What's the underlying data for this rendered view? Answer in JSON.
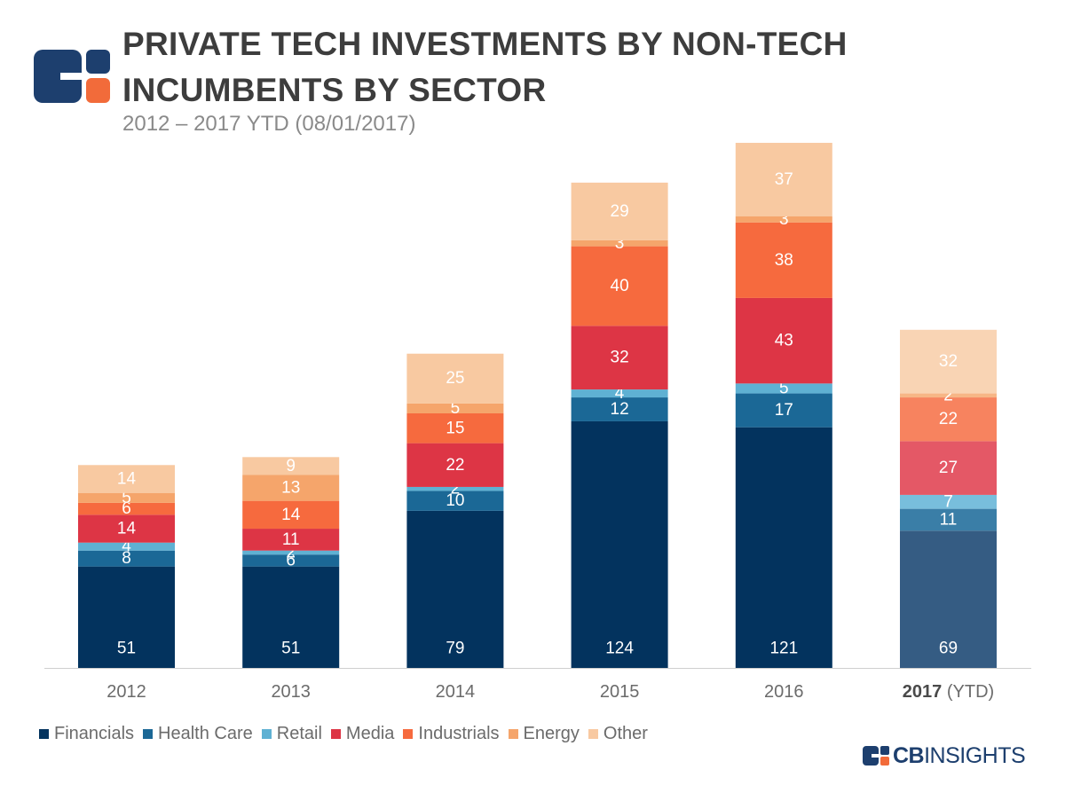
{
  "header": {
    "title_line1": "PRIVATE TECH INVESTMENTS BY NON-TECH",
    "title_line2": "INCUMBENTS BY SECTOR",
    "subtitle": "2012 – 2017 YTD (08/01/2017)"
  },
  "brand": {
    "prefix": "CB",
    "suffix": "INSIGHTS"
  },
  "colors": {
    "logo_navy": "#1d3f6e",
    "logo_orange": "#f26b3a",
    "axis": "#cfcfcf",
    "label_text": "#ffffff"
  },
  "chart_data": {
    "type": "bar",
    "stacked": true,
    "categories": [
      "2012",
      "2013",
      "2014",
      "2015",
      "2016",
      "2017 (YTD)"
    ],
    "category_labels": [
      {
        "bold": "",
        "rest": "2012"
      },
      {
        "bold": "",
        "rest": "2013"
      },
      {
        "bold": "",
        "rest": "2014"
      },
      {
        "bold": "",
        "rest": "2015"
      },
      {
        "bold": "",
        "rest": "2016"
      },
      {
        "bold": "2017",
        "rest": " (YTD)"
      }
    ],
    "series": [
      {
        "name": "Financials",
        "color": "#03335e",
        "color_ytd": "#355c83",
        "values": [
          51,
          51,
          79,
          124,
          121,
          69
        ]
      },
      {
        "name": "Health Care",
        "color": "#1b6896",
        "color_ytd": "#3a7ea7",
        "values": [
          8,
          6,
          10,
          12,
          17,
          11
        ]
      },
      {
        "name": "Retail",
        "color": "#5fb1d3",
        "color_ytd": "#78bedc",
        "values": [
          4,
          2,
          2,
          4,
          5,
          7
        ]
      },
      {
        "name": "Media",
        "color": "#dd3545",
        "color_ytd": "#e45866",
        "values": [
          14,
          11,
          22,
          32,
          43,
          27
        ]
      },
      {
        "name": "Industrials",
        "color": "#f66a3e",
        "color_ytd": "#f7835f",
        "values": [
          6,
          14,
          15,
          40,
          38,
          22
        ]
      },
      {
        "name": "Energy",
        "color": "#f5a56b",
        "color_ytd": "#f7b686",
        "values": [
          5,
          13,
          5,
          3,
          3,
          2
        ]
      },
      {
        "name": "Other",
        "color": "#f8c9a1",
        "color_ytd": "#f9d4b4",
        "values": [
          14,
          9,
          25,
          29,
          37,
          32
        ]
      }
    ],
    "ylim": [
      0,
      260
    ],
    "grid": false,
    "legend_position": "bottom-left",
    "data_labels": true
  }
}
